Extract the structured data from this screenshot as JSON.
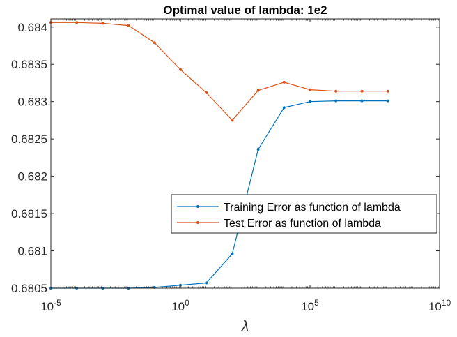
{
  "chart_data": {
    "type": "line",
    "title": "Optimal value of lambda: 1e2",
    "xlabel": "λ",
    "ylabel": "",
    "xscale": "log",
    "xlim": [
      1e-05,
      10000000000.0
    ],
    "ylim": [
      0.6805,
      0.68411
    ],
    "xticks": [
      {
        "value": 1e-05,
        "base": "10",
        "exp": "-5"
      },
      {
        "value": 1,
        "base": "10",
        "exp": "0"
      },
      {
        "value": 100000.0,
        "base": "10",
        "exp": "5"
      },
      {
        "value": 10000000000.0,
        "base": "10",
        "exp": "10"
      }
    ],
    "yticks": [
      {
        "value": 0.6805,
        "label": "0.6805"
      },
      {
        "value": 0.681,
        "label": "0.681"
      },
      {
        "value": 0.6815,
        "label": "0.6815"
      },
      {
        "value": 0.682,
        "label": "0.682"
      },
      {
        "value": 0.6825,
        "label": "0.6825"
      },
      {
        "value": 0.683,
        "label": "0.683"
      },
      {
        "value": 0.6835,
        "label": "0.6835"
      },
      {
        "value": 0.684,
        "label": "0.684"
      }
    ],
    "x": [
      1e-05,
      0.0001,
      0.001,
      0.01,
      0.1,
      1,
      10.0,
      100.0,
      1000.0,
      10000.0,
      100000.0,
      1000000.0,
      10000000.0,
      100000000.0
    ],
    "series": [
      {
        "name": "Training Error as function of lambda",
        "color": "#0072BD",
        "values": [
          0.6805,
          0.6805,
          0.6805,
          0.6805,
          0.68051,
          0.68054,
          0.68057,
          0.68096,
          0.68236,
          0.68292,
          0.683,
          0.68301,
          0.68301,
          0.68301
        ]
      },
      {
        "name": "Test Error as function of lambda",
        "color": "#D95319",
        "values": [
          0.68406,
          0.68406,
          0.68405,
          0.68402,
          0.68379,
          0.68343,
          0.68312,
          0.68275,
          0.68315,
          0.68326,
          0.68316,
          0.68314,
          0.68314,
          0.68314
        ]
      }
    ],
    "legend_position": "inside-right",
    "grid": false
  }
}
